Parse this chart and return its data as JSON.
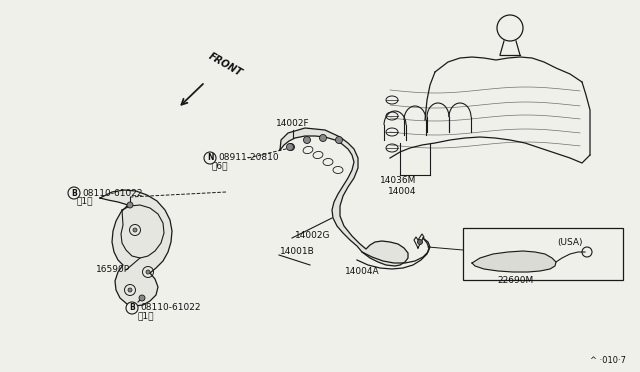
{
  "bg_color": "#f0f0eb",
  "line_color": "#1a1a1a",
  "text_color": "#111111",
  "page_ref": "^ ·010·7",
  "labels": {
    "FRONT": "FRONT",
    "14002F": "14002F",
    "08911_20810": "08911-20810",
    "6": "（6）",
    "08110_61022_top": "08110-61022",
    "1_top": "（1）",
    "14036M": "14036M",
    "14004": "14004",
    "14002G": "14002G",
    "14001B": "14001B",
    "14004A": "14004A",
    "16590P": "16590P",
    "08110_61022_bot": "08110-61022",
    "1_bot": "（1）",
    "USA": "(USA)",
    "22690M": "22690M"
  }
}
